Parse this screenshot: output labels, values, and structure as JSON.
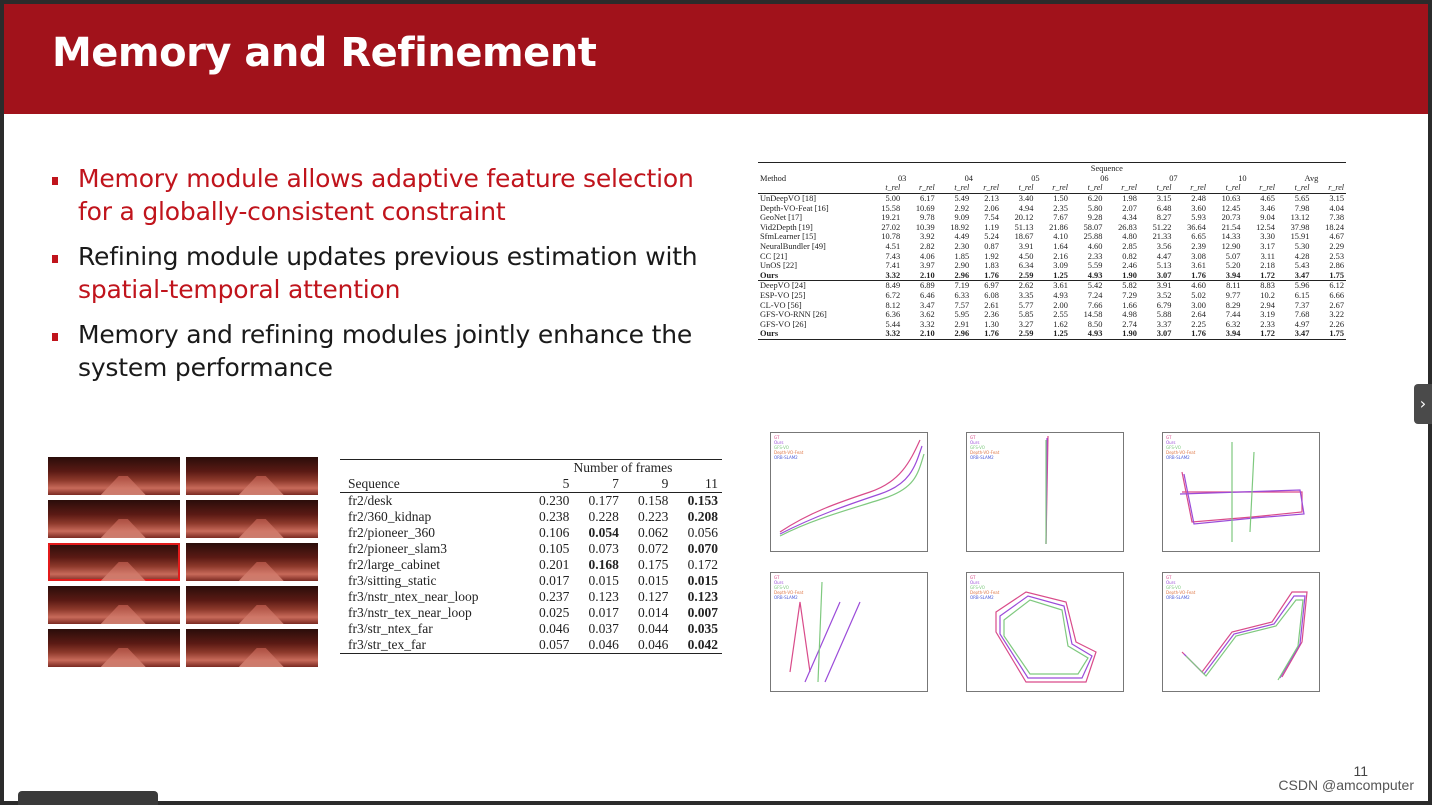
{
  "slide": {
    "title": "Memory and Refinement",
    "page_number": "11",
    "watermark": "CSDN @amcomputer",
    "nav_arrow": "›"
  },
  "bullets": [
    {
      "segments": [
        {
          "text": "Memory module allows adaptive feature selection for a globally-consistent constraint",
          "red": true
        }
      ]
    },
    {
      "segments": [
        {
          "text": "Refining module updates previous estimation with ",
          "red": false
        },
        {
          "text": "spatial-temporal attention",
          "red": true
        }
      ]
    },
    {
      "segments": [
        {
          "text": "Memory and refining modules jointly enhance the system performance",
          "red": false
        }
      ]
    }
  ],
  "kitti_table": {
    "sequence_label": "Sequence",
    "method_label": "Method",
    "groups": [
      "03",
      "04",
      "05",
      "06",
      "07",
      "10",
      "Avg"
    ],
    "sub_a": "t_rel",
    "sub_b": "r_rel",
    "rows": [
      {
        "m": "UnDeepVO [18]",
        "v": [
          "5.00",
          "6.17",
          "5.49",
          "2.13",
          "3.40",
          "1.50",
          "6.20",
          "1.98",
          "3.15",
          "2.48",
          "10.63",
          "4.65",
          "5.65",
          "3.15"
        ]
      },
      {
        "m": "Depth-VO-Feat [16]",
        "v": [
          "15.58",
          "10.69",
          "2.92",
          "2.06",
          "4.94",
          "2.35",
          "5.80",
          "2.07",
          "6.48",
          "3.60",
          "12.45",
          "3.46",
          "7.98",
          "4.04"
        ]
      },
      {
        "m": "GeoNet [17]",
        "v": [
          "19.21",
          "9.78",
          "9.09",
          "7.54",
          "20.12",
          "7.67",
          "9.28",
          "4.34",
          "8.27",
          "5.93",
          "20.73",
          "9.04",
          "13.12",
          "7.38"
        ]
      },
      {
        "m": "Vid2Depth [19]",
        "v": [
          "27.02",
          "10.39",
          "18.92",
          "1.19",
          "51.13",
          "21.86",
          "58.07",
          "26.83",
          "51.22",
          "36.64",
          "21.54",
          "12.54",
          "37.98",
          "18.24"
        ]
      },
      {
        "m": "SfmLearner [15]",
        "v": [
          "10.78",
          "3.92",
          "4.49",
          "5.24",
          "18.67",
          "4.10",
          "25.88",
          "4.80",
          "21.33",
          "6.65",
          "14.33",
          "3.30",
          "15.91",
          "4.67"
        ]
      },
      {
        "m": "NeuralBundler [49]",
        "v": [
          "4.51",
          "2.82",
          "2.30",
          "0.87",
          "3.91",
          "1.64",
          "4.60",
          "2.85",
          "3.56",
          "2.39",
          "12.90",
          "3.17",
          "5.30",
          "2.29"
        ]
      },
      {
        "m": "CC [21]",
        "v": [
          "7.43",
          "4.06",
          "1.85",
          "1.92",
          "4.50",
          "2.16",
          "2.33",
          "0.82",
          "4.47",
          "3.08",
          "5.07",
          "3.11",
          "4.28",
          "2.53"
        ]
      },
      {
        "m": "UnOS [22]",
        "v": [
          "7.41",
          "3.97",
          "2.90",
          "1.83",
          "6.34",
          "3.09",
          "5.59",
          "2.46",
          "5.13",
          "3.61",
          "5.20",
          "2.18",
          "5.43",
          "2.86"
        ]
      },
      {
        "m": "Ours",
        "v": [
          "3.32",
          "2.10",
          "2.96",
          "1.76",
          "2.59",
          "1.25",
          "4.93",
          "1.90",
          "3.07",
          "1.76",
          "3.94",
          "1.72",
          "3.47",
          "1.75"
        ],
        "bold": true
      },
      {
        "m": "DeepVO [24]",
        "v": [
          "8.49",
          "6.89",
          "7.19",
          "6.97",
          "2.62",
          "3.61",
          "5.42",
          "5.82",
          "3.91",
          "4.60",
          "8.11",
          "8.83",
          "5.96",
          "6.12"
        ],
        "sep": true
      },
      {
        "m": "ESP-VO [25]",
        "v": [
          "6.72",
          "6.46",
          "6.33",
          "6.08",
          "3.35",
          "4.93",
          "7.24",
          "7.29",
          "3.52",
          "5.02",
          "9.77",
          "10.2",
          "6.15",
          "6.66"
        ]
      },
      {
        "m": "CL-VO [56]",
        "v": [
          "8.12",
          "3.47",
          "7.57",
          "2.61",
          "5.77",
          "2.00",
          "7.66",
          "1.66",
          "6.79",
          "3.00",
          "8.29",
          "2.94",
          "7.37",
          "2.67"
        ]
      },
      {
        "m": "GFS-VO-RNN [26]",
        "v": [
          "6.36",
          "3.62",
          "5.95",
          "2.36",
          "5.85",
          "2.55",
          "14.58",
          "4.98",
          "5.88",
          "2.64",
          "7.44",
          "3.19",
          "7.68",
          "3.22"
        ]
      },
      {
        "m": "GFS-VO [26]",
        "v": [
          "5.44",
          "3.32",
          "2.91",
          "1.30",
          "3.27",
          "1.62",
          "8.50",
          "2.74",
          "3.37",
          "2.25",
          "6.32",
          "2.33",
          "4.97",
          "2.26"
        ]
      },
      {
        "m": "Ours",
        "v": [
          "3.32",
          "2.10",
          "2.96",
          "1.76",
          "2.59",
          "1.25",
          "4.93",
          "1.90",
          "3.07",
          "1.76",
          "3.94",
          "1.72",
          "3.47",
          "1.75"
        ],
        "bold": true,
        "last": true
      }
    ]
  },
  "frames_table": {
    "header_group": "Number of frames",
    "sequence_label": "Sequence",
    "cols": [
      "5",
      "7",
      "9",
      "11"
    ],
    "rows": [
      {
        "s": "fr2/desk",
        "v": [
          "0.230",
          "0.177",
          "0.158",
          "0.153"
        ],
        "b": 3
      },
      {
        "s": "fr2/360_kidnap",
        "v": [
          "0.238",
          "0.228",
          "0.223",
          "0.208"
        ],
        "b": 3
      },
      {
        "s": "fr2/pioneer_360",
        "v": [
          "0.106",
          "0.054",
          "0.062",
          "0.056"
        ],
        "b": 1
      },
      {
        "s": "fr2/pioneer_slam3",
        "v": [
          "0.105",
          "0.073",
          "0.072",
          "0.070"
        ],
        "b": 3
      },
      {
        "s": "fr2/large_cabinet",
        "v": [
          "0.201",
          "0.168",
          "0.175",
          "0.172"
        ],
        "b": 1
      },
      {
        "s": "fr3/sitting_static",
        "v": [
          "0.017",
          "0.015",
          "0.015",
          "0.015"
        ],
        "b": 3
      },
      {
        "s": "fr3/nstr_ntex_near_loop",
        "v": [
          "0.237",
          "0.123",
          "0.127",
          "0.123"
        ],
        "b": 3
      },
      {
        "s": "fr3/nstr_tex_near_loop",
        "v": [
          "0.025",
          "0.017",
          "0.014",
          "0.007"
        ],
        "b": 3
      },
      {
        "s": "fr3/str_ntex_far",
        "v": [
          "0.046",
          "0.037",
          "0.044",
          "0.035"
        ],
        "b": 3
      },
      {
        "s": "fr3/str_tex_far",
        "v": [
          "0.057",
          "0.046",
          "0.046",
          "0.042"
        ],
        "b": 3
      }
    ]
  },
  "plot_legend": [
    "GT",
    "Ours",
    "GFS-VO",
    "Depth-VO-Feat",
    "ORB-SLAM2"
  ],
  "plot_colors": [
    "#d94b8a",
    "#9b4bd9",
    "#7fc97f",
    "#e07a4a",
    "#4a5bd9"
  ],
  "thumbnail_count": 10,
  "selected_thumbnail": 4
}
